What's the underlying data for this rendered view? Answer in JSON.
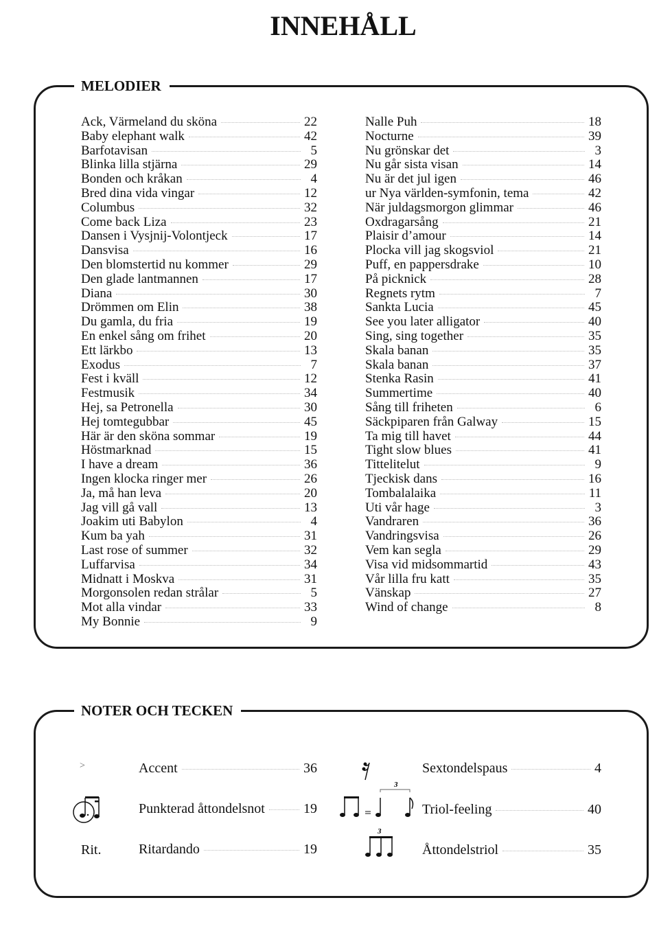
{
  "title": "INNEHÅLL",
  "melodier": {
    "heading": "MELODIER",
    "left": [
      {
        "title": "Ack, Värmeland du sköna",
        "page": "22"
      },
      {
        "title": "Baby elephant walk",
        "page": "42"
      },
      {
        "title": "Barfotavisan",
        "page": "5"
      },
      {
        "title": "Blinka lilla stjärna",
        "page": "29"
      },
      {
        "title": "Bonden och kråkan",
        "page": "4"
      },
      {
        "title": "Bred dina vida vingar",
        "page": "12"
      },
      {
        "title": "Columbus",
        "page": "32"
      },
      {
        "title": "Come back Liza",
        "page": "23"
      },
      {
        "title": "Dansen i Vysjnij-Volontjeck",
        "page": "17"
      },
      {
        "title": "Dansvisa",
        "page": "16"
      },
      {
        "title": "Den blomstertid nu kommer",
        "page": "29"
      },
      {
        "title": "Den glade lantmannen",
        "page": "17"
      },
      {
        "title": "Diana",
        "page": "30"
      },
      {
        "title": "Drömmen om Elin",
        "page": "38"
      },
      {
        "title": "Du gamla, du fria",
        "page": "19"
      },
      {
        "title": "En enkel sång om frihet",
        "page": "20"
      },
      {
        "title": "Ett lärkbo",
        "page": "13"
      },
      {
        "title": "Exodus",
        "page": "7"
      },
      {
        "title": "Fest i kväll",
        "page": "12"
      },
      {
        "title": "Festmusik",
        "page": "34"
      },
      {
        "title": "Hej, sa Petronella",
        "page": "30"
      },
      {
        "title": "Hej tomtegubbar",
        "page": "45"
      },
      {
        "title": "Här är den sköna sommar",
        "page": "19"
      },
      {
        "title": "Höstmarknad",
        "page": "15"
      },
      {
        "title": "I have a dream",
        "page": "36"
      },
      {
        "title": "Ingen klocka ringer mer",
        "page": "26"
      },
      {
        "title": "Ja, må han leva",
        "page": "20"
      },
      {
        "title": "Jag vill gå vall",
        "page": "13"
      },
      {
        "title": "Joakim uti Babylon",
        "page": "4"
      },
      {
        "title": "Kum ba yah",
        "page": "31"
      },
      {
        "title": "Last rose of summer",
        "page": "32"
      },
      {
        "title": "Luffarvisa",
        "page": "34"
      },
      {
        "title": "Midnatt i Moskva",
        "page": "31"
      },
      {
        "title": "Morgonsolen redan strålar",
        "page": "5"
      },
      {
        "title": "Mot alla vindar",
        "page": "33"
      },
      {
        "title": "My Bonnie",
        "page": "9"
      }
    ],
    "right": [
      {
        "title": "Nalle Puh",
        "page": "18"
      },
      {
        "title": "Nocturne",
        "page": "39"
      },
      {
        "title": "Nu grönskar det",
        "page": "3"
      },
      {
        "title": "Nu går sista visan",
        "page": "14"
      },
      {
        "title": "Nu är det jul igen",
        "page": "46"
      },
      {
        "title": "ur Nya världen-symfonin, tema",
        "page": "42"
      },
      {
        "title": "När juldagsmorgon glimmar",
        "page": "46"
      },
      {
        "title": "Oxdragarsång",
        "page": "21"
      },
      {
        "title": "Plaisir d’amour",
        "page": "14"
      },
      {
        "title": "Plocka vill jag skogsviol",
        "page": "21"
      },
      {
        "title": "Puff, en pappersdrake",
        "page": "10"
      },
      {
        "title": "På picknick",
        "page": "28"
      },
      {
        "title": "Regnets rytm",
        "page": "7"
      },
      {
        "title": "Sankta Lucia",
        "page": "45"
      },
      {
        "title": "See you later alligator",
        "page": "40"
      },
      {
        "title": "Sing, sing together",
        "page": "35"
      },
      {
        "title": "Skala banan",
        "page": "35"
      },
      {
        "title": "Skala banan",
        "page": "37"
      },
      {
        "title": "Stenka Rasin",
        "page": "41"
      },
      {
        "title": "Summertime",
        "page": "40"
      },
      {
        "title": "Sång till friheten",
        "page": "6"
      },
      {
        "title": "Säckpiparen från Galway",
        "page": "15"
      },
      {
        "title": "Ta mig till havet",
        "page": "44"
      },
      {
        "title": "Tight slow blues",
        "page": "41"
      },
      {
        "title": "Tittelitelut",
        "page": "9"
      },
      {
        "title": "Tjeckisk dans",
        "page": "16"
      },
      {
        "title": "Tombalalaika",
        "page": "11"
      },
      {
        "title": "Uti vår hage",
        "page": "3"
      },
      {
        "title": "Vandraren",
        "page": "36"
      },
      {
        "title": "Vandringsvisa",
        "page": "26"
      },
      {
        "title": "Vem kan segla",
        "page": "29"
      },
      {
        "title": "Visa vid midsommartid",
        "page": "43"
      },
      {
        "title": "Vår lilla fru katt",
        "page": "35"
      },
      {
        "title": "Vänskap",
        "page": "27"
      },
      {
        "title": "Wind of change",
        "page": "8"
      }
    ]
  },
  "noter": {
    "heading": "NOTER OCH TECKEN",
    "items": [
      {
        "symbol": "accent-icon",
        "glyph": ">",
        "label": "Accent",
        "page": "36"
      },
      {
        "symbol": "dotted-eighth-note-icon",
        "label": "Punkterad åttondelsnot",
        "page": "19"
      },
      {
        "symbol": "rit-text",
        "glyph": "Rit.",
        "label": "Ritardando",
        "page": "19"
      },
      {
        "symbol": "sixteenth-rest-icon",
        "label": "Sextondelspaus",
        "page": "4"
      },
      {
        "symbol": "triplet-feel-icon",
        "glyph": "3",
        "label": "Triol-feeling",
        "page": "40"
      },
      {
        "symbol": "eighth-triplet-icon",
        "glyph": "3",
        "label": "Åttondelstriol",
        "page": "35"
      }
    ]
  }
}
